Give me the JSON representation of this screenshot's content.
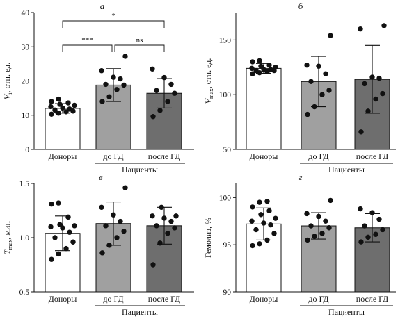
{
  "colors": {
    "donors": "#ffffff",
    "before": "#a0a0a0",
    "after": "#6e6e6e",
    "ink": "#111111"
  },
  "chart_data": [
    {
      "type": "bar",
      "panel_letter": "а",
      "ylabel_main": "V",
      "ylabel_sub": "i",
      "ylabel_rest": ", отн. ед.",
      "ylim": [
        0,
        40
      ],
      "yticks": [
        0,
        10,
        20,
        30,
        40
      ],
      "categories": [
        "Доноры",
        "до ГД",
        "после ГД"
      ],
      "group_label": "Пациенты",
      "means": [
        12.0,
        18.8,
        16.4
      ],
      "sd": [
        1.4,
        4.8,
        4.3
      ],
      "points": [
        [
          10.3,
          10.6,
          11.0,
          11.2,
          11.5,
          11.8,
          12.1,
          12.5,
          12.9,
          13.2,
          13.6,
          14.0,
          14.7
        ],
        [
          14.0,
          15.4,
          17.5,
          18.8,
          19.0,
          20.6,
          21.1,
          23.0,
          27.2
        ],
        [
          9.6,
          11.4,
          14.0,
          16.4,
          17.2,
          19.0,
          21.0,
          23.5
        ]
      ],
      "significance": [
        {
          "from": 0,
          "to": 1,
          "label": "***"
        },
        {
          "from": 1,
          "to": 2,
          "label": "ns"
        },
        {
          "from": 0,
          "to": 2,
          "label": "*"
        }
      ]
    },
    {
      "type": "bar",
      "panel_letter": "б",
      "ylabel_main": "V",
      "ylabel_sub": "max",
      "ylabel_rest": ", отн. ед.",
      "ylim": [
        50,
        175
      ],
      "yticks": [
        50,
        100,
        150
      ],
      "categories": [
        "Доноры",
        "до ГД",
        "после ГД"
      ],
      "group_label": "Пациенты",
      "means": [
        124,
        112,
        114
      ],
      "sd": [
        4.5,
        23,
        31
      ],
      "points": [
        [
          119,
          120,
          121,
          122,
          122,
          123,
          123,
          124,
          125,
          126,
          127,
          130,
          131
        ],
        [
          82,
          89,
          100,
          104,
          112,
          119,
          126,
          127,
          154
        ],
        [
          66,
          85,
          96,
          101,
          110,
          115,
          116,
          160,
          163
        ]
      ],
      "significance": []
    },
    {
      "type": "bar",
      "panel_letter": "в",
      "ylabel_main": "T",
      "ylabel_sub": "max",
      "ylabel_rest": ", мин",
      "ylim": [
        0.5,
        1.5
      ],
      "yticks": [
        0.5,
        1.0,
        1.5
      ],
      "categories": [
        "Доноры",
        "до ГД",
        "после ГД"
      ],
      "group_label": "Пациенты",
      "means": [
        1.04,
        1.13,
        1.11
      ],
      "sd": [
        0.16,
        0.2,
        0.17
      ],
      "points": [
        [
          0.8,
          0.85,
          0.9,
          0.96,
          1.0,
          1.05,
          1.09,
          1.1,
          1.11,
          1.12,
          1.19,
          1.31,
          1.32
        ],
        [
          0.86,
          0.93,
          1.0,
          1.06,
          1.11,
          1.15,
          1.21,
          1.28,
          1.46
        ],
        [
          0.75,
          0.95,
          1.04,
          1.09,
          1.11,
          1.15,
          1.18,
          1.2,
          1.2,
          1.28
        ]
      ],
      "significance": []
    },
    {
      "type": "bar",
      "panel_letter": "г",
      "ylabel_main": "Гемолиз, %",
      "ylabel_sub": "",
      "ylabel_rest": "",
      "ylim": [
        90,
        101.5
      ],
      "yticks": [
        90,
        95,
        100
      ],
      "categories": [
        "Доноры",
        "до ГД",
        "после ГД"
      ],
      "group_label": "Пациенты",
      "means": [
        97.2,
        97.0,
        96.8
      ],
      "sd": [
        1.7,
        1.4,
        1.5
      ],
      "points": [
        [
          94.9,
          95.1,
          95.5,
          96.2,
          96.6,
          97.1,
          97.3,
          97.5,
          97.8,
          98.2,
          98.6,
          99.0,
          99.5,
          99.6
        ],
        [
          95.5,
          95.9,
          96.2,
          96.8,
          97.0,
          97.5,
          98.0,
          98.3,
          99.7
        ],
        [
          95.3,
          95.8,
          96.1,
          96.6,
          97.0,
          97.7,
          98.4,
          98.8
        ]
      ],
      "significance": []
    }
  ]
}
